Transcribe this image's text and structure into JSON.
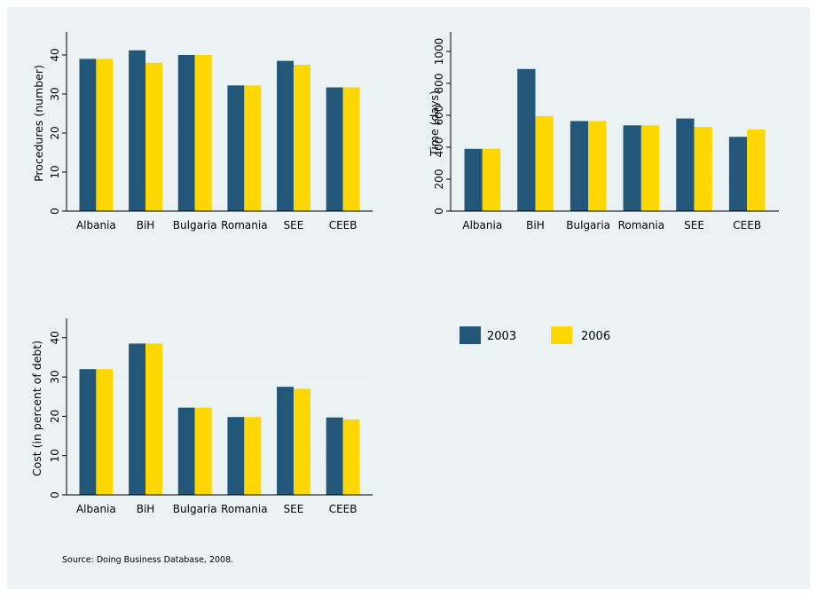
{
  "colors": {
    "series_2003": "#22577a",
    "series_2006": "#ffd700",
    "gridline": "#e8f0f0",
    "axis": "#000000"
  },
  "legend": {
    "items": [
      "2003",
      "2006"
    ]
  },
  "source": "Source: Doing Business Database, 2008.",
  "chart_data": [
    {
      "type": "bar",
      "ylabel": "Procedures (number)",
      "categories": [
        "Albania",
        "BiH",
        "Bulgaria",
        "Romania",
        "SEE",
        "CEEB"
      ],
      "series": [
        {
          "name": "2003",
          "values": [
            39,
            41.2,
            40,
            32.2,
            38.5,
            31.7
          ]
        },
        {
          "name": "2006",
          "values": [
            39,
            38,
            40,
            32.2,
            37.5,
            31.7
          ]
        }
      ],
      "ylim": [
        0,
        45
      ],
      "yticks": [
        0,
        10,
        20,
        30,
        40
      ],
      "grid": true
    },
    {
      "type": "bar",
      "ylabel": "Time (days)",
      "categories": [
        "Albania",
        "BiH",
        "Bulgaria",
        "Romania",
        "SEE",
        "CEEB"
      ],
      "series": [
        {
          "name": "2003",
          "values": [
            390,
            890,
            564,
            537,
            580,
            465
          ]
        },
        {
          "name": "2006",
          "values": [
            390,
            595,
            564,
            537,
            527,
            512
          ]
        }
      ],
      "ylim": [
        0,
        1100
      ],
      "yticks": [
        0,
        200,
        400,
        600,
        800,
        1000
      ],
      "grid": true
    },
    {
      "type": "bar",
      "ylabel": "Cost (in percent of debt)",
      "categories": [
        "Albania",
        "BiH",
        "Bulgaria",
        "Romania",
        "SEE",
        "CEEB"
      ],
      "series": [
        {
          "name": "2003",
          "values": [
            32,
            38.5,
            22.2,
            19.8,
            27.5,
            19.7
          ]
        },
        {
          "name": "2006",
          "values": [
            32,
            38.5,
            22.2,
            19.8,
            27,
            19.2
          ]
        }
      ],
      "ylim": [
        0,
        44
      ],
      "yticks": [
        0,
        10,
        20,
        30,
        40
      ],
      "grid": true
    }
  ]
}
